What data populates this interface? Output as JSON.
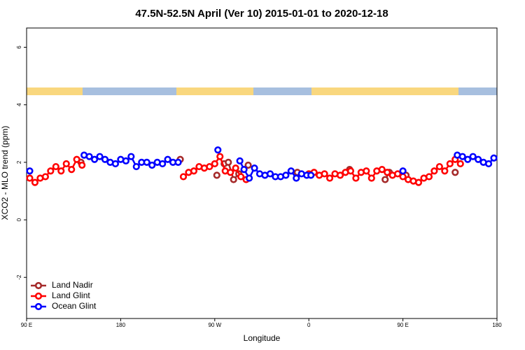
{
  "chart_data": {
    "type": "line",
    "title": "47.5N-52.5N April (Ver 10)   2015-01-01 to 2020-12-18",
    "x_label": "Longitude",
    "y_label": "XCO2 - MLO trend (ppm)",
    "xlim": [
      90,
      540
    ],
    "ylim": [
      -3.43,
      6.67
    ],
    "xticks": [
      {
        "value": 90,
        "label": "90 E"
      },
      180,
      {
        "value": 270,
        "label": "90 W"
      },
      {
        "value": 360,
        "label": "0"
      },
      {
        "value": 450,
        "label": "90 E"
      },
      {
        "value": 540,
        "label": "180"
      }
    ],
    "yticks": [
      -2,
      0,
      2,
      4,
      6
    ],
    "legend": "bottom-left",
    "series": [
      {
        "name": "Land Nadir",
        "color": "#a52a2a",
        "x": [
          142,
          237,
          272,
          279,
          283,
          288,
          293,
          302,
          349,
          399,
          433,
          437,
          453,
          500
        ],
        "values": [
          2.0,
          2.1,
          1.55,
          1.95,
          2.0,
          1.4,
          1.6,
          1.9,
          1.65,
          1.75,
          1.4,
          1.65,
          1.55,
          1.65
        ]
      },
      {
        "name": "Land Glint",
        "color": "#ff0000",
        "x": [
          93,
          98,
          103,
          108,
          113,
          118,
          123,
          128,
          133,
          138,
          143,
          240,
          245,
          250,
          255,
          260,
          265,
          270,
          275,
          280,
          285,
          290,
          295,
          300,
          360,
          365,
          370,
          375,
          380,
          385,
          390,
          395,
          400,
          405,
          410,
          415,
          420,
          425,
          430,
          435,
          440,
          445,
          450,
          455,
          460,
          465,
          470,
          475,
          480,
          485,
          490,
          495,
          500,
          505
        ],
        "values": [
          1.45,
          1.3,
          1.45,
          1.5,
          1.7,
          1.85,
          1.7,
          1.95,
          1.75,
          2.1,
          1.9,
          1.5,
          1.65,
          1.7,
          1.85,
          1.8,
          1.85,
          1.95,
          2.2,
          1.7,
          1.65,
          1.8,
          1.5,
          1.4,
          1.6,
          1.65,
          1.55,
          1.6,
          1.45,
          1.6,
          1.55,
          1.65,
          1.7,
          1.45,
          1.65,
          1.7,
          1.45,
          1.7,
          1.75,
          1.65,
          1.55,
          1.6,
          1.5,
          1.4,
          1.35,
          1.3,
          1.45,
          1.5,
          1.7,
          1.85,
          1.7,
          1.95,
          2.1,
          1.95
        ]
      },
      {
        "name": "Ocean Glint",
        "color": "#0000ff",
        "x": [
          93,
          145,
          150,
          155,
          160,
          165,
          170,
          175,
          180,
          185,
          190,
          195,
          200,
          205,
          210,
          215,
          220,
          225,
          230,
          235,
          273,
          294,
          298,
          303,
          308,
          313,
          318,
          323,
          328,
          333,
          338,
          343,
          348,
          353,
          358,
          362,
          450,
          502,
          507,
          512,
          517,
          522,
          527,
          532,
          537
        ],
        "values": [
          1.7,
          2.25,
          2.2,
          2.1,
          2.2,
          2.1,
          2.0,
          1.95,
          2.1,
          2.05,
          2.2,
          1.85,
          2.0,
          2.0,
          1.9,
          2.0,
          1.95,
          2.1,
          2.0,
          2.0,
          2.43,
          2.05,
          1.75,
          1.45,
          1.8,
          1.6,
          1.55,
          1.6,
          1.5,
          1.5,
          1.55,
          1.7,
          1.45,
          1.6,
          1.55,
          1.55,
          1.7,
          2.25,
          2.2,
          2.1,
          2.2,
          2.1,
          2.0,
          1.95,
          2.15
        ]
      }
    ]
  }
}
